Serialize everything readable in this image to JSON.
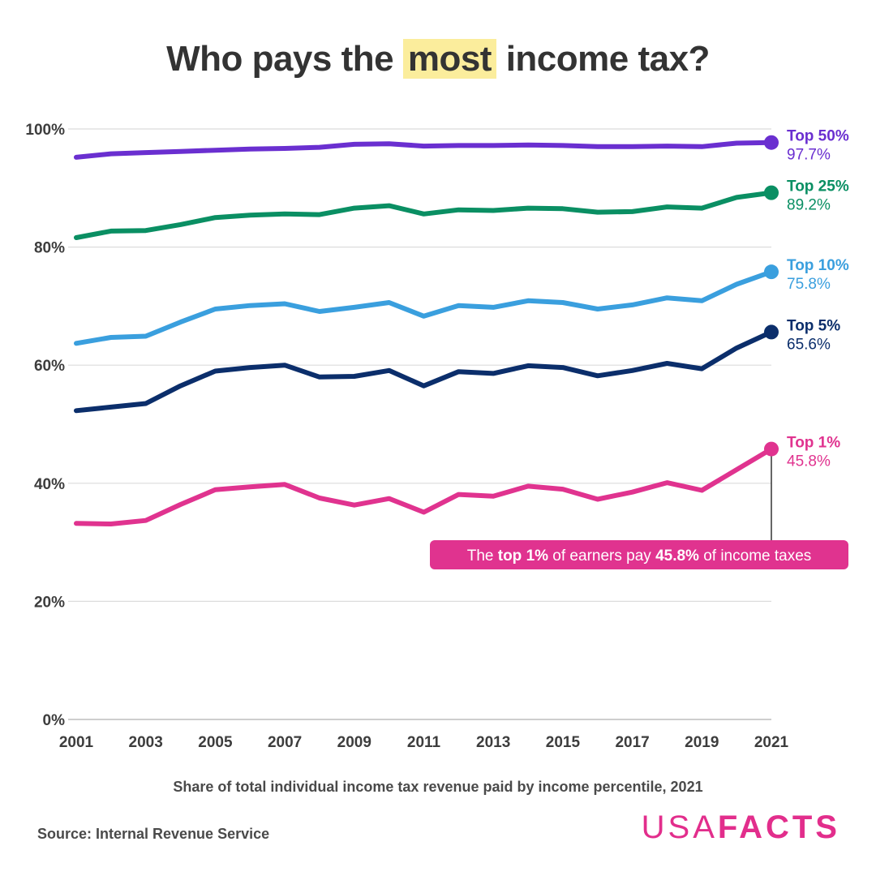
{
  "title": {
    "pre": "Who pays the",
    "highlight": "most",
    "post": "income tax?"
  },
  "subtitle": "Share of total individual income tax revenue paid by income percentile, 2021",
  "source": "Source: Internal Revenue Service",
  "logo": {
    "light": "USA",
    "bold": "FACTS"
  },
  "callout": {
    "pre": "The ",
    "bold1": "top 1%",
    "mid": " of earners pay ",
    "bold2": "45.8%",
    "post": " of income taxes",
    "color": "#e0338f"
  },
  "chart_data": {
    "type": "line",
    "x": [
      2001,
      2002,
      2003,
      2004,
      2005,
      2006,
      2007,
      2008,
      2009,
      2010,
      2011,
      2012,
      2013,
      2014,
      2015,
      2016,
      2017,
      2018,
      2019,
      2020,
      2021
    ],
    "xticks": [
      "2001",
      "2003",
      "2005",
      "2007",
      "2009",
      "2011",
      "2013",
      "2015",
      "2017",
      "2019",
      "2021"
    ],
    "yticks": [
      0,
      20,
      40,
      60,
      80,
      100
    ],
    "ytick_labels": [
      "0%",
      "20%",
      "40%",
      "60%",
      "80%",
      "100%"
    ],
    "ylim": [
      0,
      100
    ],
    "grid": true,
    "series": [
      {
        "name": "Top 50%",
        "end_label": "97.7%",
        "color": "#6a2fd0",
        "values": [
          95.2,
          95.8,
          96.0,
          96.2,
          96.4,
          96.6,
          96.7,
          96.9,
          97.4,
          97.5,
          97.1,
          97.2,
          97.2,
          97.3,
          97.2,
          97.0,
          97.0,
          97.1,
          97.0,
          97.6,
          97.7
        ]
      },
      {
        "name": "Top 25%",
        "end_label": "89.2%",
        "color": "#0a8f63",
        "values": [
          81.6,
          82.7,
          82.8,
          83.8,
          85.0,
          85.4,
          85.6,
          85.5,
          86.6,
          87.0,
          85.6,
          86.3,
          86.2,
          86.6,
          86.5,
          85.9,
          86.0,
          86.8,
          86.6,
          88.4,
          89.2
        ]
      },
      {
        "name": "Top 10%",
        "end_label": "75.8%",
        "color": "#3a9fde",
        "values": [
          63.7,
          64.7,
          64.9,
          67.3,
          69.5,
          70.1,
          70.4,
          69.1,
          69.8,
          70.6,
          68.3,
          70.1,
          69.8,
          70.9,
          70.6,
          69.5,
          70.2,
          71.4,
          70.9,
          73.7,
          75.8
        ]
      },
      {
        "name": "Top 5%",
        "end_label": "65.6%",
        "color": "#0b2e6b",
        "values": [
          52.3,
          52.9,
          53.5,
          56.5,
          59.0,
          59.6,
          60.0,
          58.0,
          58.1,
          59.1,
          56.5,
          58.9,
          58.6,
          59.9,
          59.6,
          58.2,
          59.1,
          60.3,
          59.4,
          62.9,
          65.6
        ]
      },
      {
        "name": "Top 1%",
        "end_label": "45.8%",
        "color": "#e0338f",
        "values": [
          33.2,
          33.1,
          33.7,
          36.4,
          38.9,
          39.4,
          39.8,
          37.5,
          36.3,
          37.4,
          35.1,
          38.1,
          37.8,
          39.5,
          39.0,
          37.3,
          38.5,
          40.1,
          38.8,
          42.3,
          45.8
        ]
      }
    ]
  }
}
